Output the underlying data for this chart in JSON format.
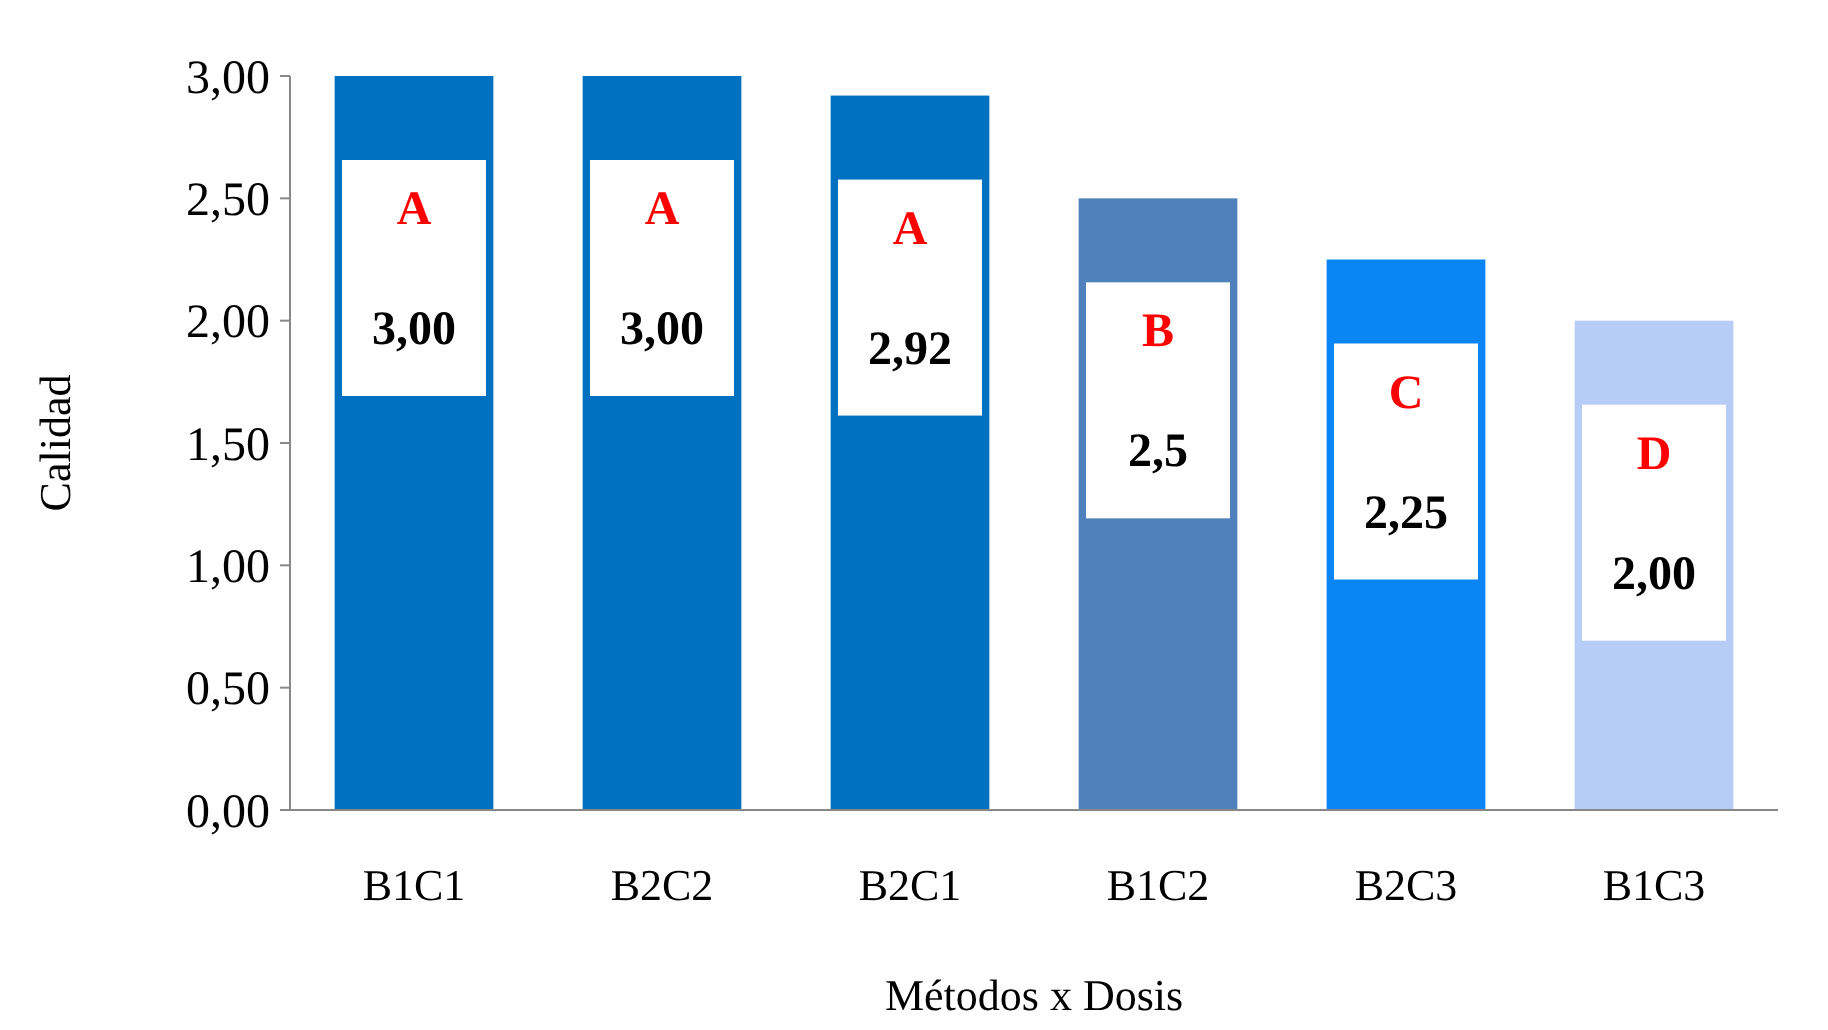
{
  "chart_data": {
    "type": "bar",
    "xlabel": "Métodos x Dosis",
    "ylabel": "Calidad",
    "categories": [
      "B1C1",
      "B2C2",
      "B2C1",
      "B1C2",
      "B2C3",
      "B1C3"
    ],
    "values": [
      3.0,
      3.0,
      2.92,
      2.5,
      2.25,
      2.0
    ],
    "colors": [
      "#0070c0",
      "#0070c0",
      "#0070c0",
      "#4f81bd",
      "#0a85f5",
      "#b7cdf8"
    ],
    "value_labels": [
      "3,00",
      "3,00",
      "2,92",
      "2,5",
      "2,25",
      "2,00"
    ],
    "annotations": [
      {
        "text": "A",
        "x": "B1C1",
        "y": 3.0
      },
      {
        "text": "A",
        "x": "B2C2",
        "y": 3.0
      },
      {
        "text": "A",
        "x": "B2C1",
        "y": 2.92
      },
      {
        "text": "B",
        "x": "B1C2",
        "y": 2.5
      },
      {
        "text": "C",
        "x": "B2C3",
        "y": 2.25
      },
      {
        "text": "D",
        "x": "B1C3",
        "y": 2.0
      }
    ],
    "ylim": [
      0,
      3
    ],
    "yticks": [
      {
        "value": 0,
        "label": "0,00"
      },
      {
        "value": 0.5,
        "label": "0,50"
      },
      {
        "value": 1,
        "label": "1,00"
      },
      {
        "value": 1.5,
        "label": "1,50"
      },
      {
        "value": 2,
        "label": "2,00"
      },
      {
        "value": 2.5,
        "label": "2,50"
      },
      {
        "value": 3,
        "label": "3,00"
      }
    ],
    "grid": false
  }
}
